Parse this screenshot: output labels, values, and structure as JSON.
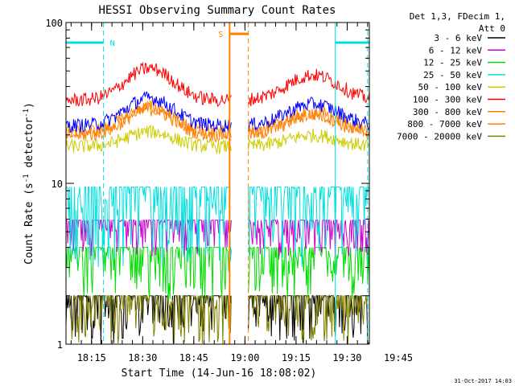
{
  "chart_data": {
    "type": "line",
    "title": "HESSI Observing Summary Count Rates",
    "xlabel": "Start Time (14-Jun-16 18:08:02)",
    "ylabel_parts": [
      "Count Rate (s",
      "-1",
      " detector",
      "-1",
      ")"
    ],
    "y_scale": "log",
    "ylim": [
      1,
      100
    ],
    "y_tick_labels": [
      {
        "value": 1,
        "label": "1"
      },
      {
        "value": 10,
        "label": "10"
      },
      {
        "value": 100,
        "label": "100"
      }
    ],
    "xlim_minutes": [
      7.5,
      96.5
    ],
    "x_ticks": [
      {
        "minute": 15,
        "label": "18:15"
      },
      {
        "minute": 30,
        "label": "18:30"
      },
      {
        "minute": 45,
        "label": "18:45"
      },
      {
        "minute": 60,
        "label": "19:00"
      },
      {
        "minute": 75,
        "label": "19:15"
      },
      {
        "minute": 90,
        "label": "19:30"
      },
      {
        "minute": 105,
        "label": "19:45"
      }
    ],
    "x_minor_step": 3,
    "legend_header": [
      "Det 1,3, FDecim 1,",
      "Att 0"
    ],
    "legend_position": "right",
    "data_gap_minutes": [
      56,
      61
    ],
    "series": [
      {
        "name": "3 - 6 keV",
        "color": "#000000",
        "level_max": 2.0,
        "level_min": 1.0,
        "shape": "discrete-low"
      },
      {
        "name": "6 - 12 keV",
        "color": "#cc00cc",
        "level_max": 5.9,
        "level_min": 3.5,
        "shape": "discrete-mid"
      },
      {
        "name": "12 - 25 keV",
        "color": "#00dd00",
        "level_max": 4.0,
        "level_min": 1.9,
        "shape": "discrete-mid"
      },
      {
        "name": "25 - 50 keV",
        "color": "#00e0e0",
        "level_max": 9.5,
        "level_min": 3.0,
        "shape": "discrete-mid"
      },
      {
        "name": "50 - 100 keV",
        "color": "#cccc00",
        "peak": 21,
        "base": 17,
        "shape": "orbit"
      },
      {
        "name": "100 - 300 keV",
        "color": "#ff0000",
        "peak": 52,
        "base": 33,
        "shape": "orbit"
      },
      {
        "name": "300 - 800 keV",
        "color": "#ff8000",
        "peak": 30,
        "base": 21,
        "shape": "orbit"
      },
      {
        "name": "800 - 7000 keV",
        "color": "#ff8000",
        "peak": 29,
        "base": 20,
        "shape": "orbit"
      },
      {
        "name": "7000 - 20000 keV",
        "color": "#808000",
        "level_max": 2.0,
        "level_min": 1.0,
        "shape": "discrete-low"
      }
    ],
    "blue_series_color": "#0000ff",
    "annotations": {
      "night": [
        {
          "label": "N",
          "start_minute": 7.5,
          "end_minute": 18.5,
          "value": 75,
          "color": "#00e0e0"
        },
        {
          "label": "",
          "start_minute": 86.5,
          "end_minute": 96.5,
          "value": 75,
          "color": "#00e0e0"
        }
      ],
      "saa": {
        "label": "S",
        "start_minute": 55.5,
        "end_minute": 61,
        "value": 85,
        "color": "#ff8000"
      },
      "dashed_cyan_minutes": [
        18.5,
        96
      ],
      "solid_cyan_minutes": [
        86.5
      ],
      "dashed_orange_minutes": [
        61
      ],
      "solid_orange_minutes": [
        55.5
      ]
    }
  },
  "timestamp": "31-Oct-2017 14:03"
}
